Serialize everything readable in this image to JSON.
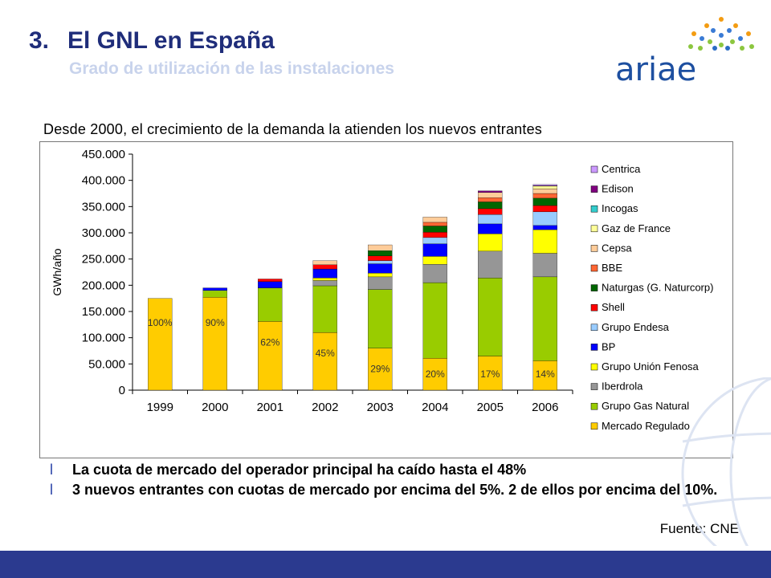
{
  "header": {
    "number": "3.",
    "title": "El GNL en España",
    "subtitle": "Grado de utilización de las instalaciones"
  },
  "logo": {
    "text": "ariae"
  },
  "lead_text": "Desde 2000, el crecimiento de la demanda la atienden los nuevos entrantes",
  "chart_data": {
    "type": "bar",
    "stacked": true,
    "ylabel": "GWh/año",
    "ylim": [
      0,
      450000
    ],
    "yticks": [
      0,
      50000,
      100000,
      150000,
      200000,
      250000,
      300000,
      350000,
      400000,
      450000
    ],
    "ytick_labels": [
      "0",
      "50.000",
      "100.000",
      "150.000",
      "200.000",
      "250.000",
      "300.000",
      "350.000",
      "400.000",
      "450.000"
    ],
    "categories": [
      "1999",
      "2000",
      "2001",
      "2002",
      "2003",
      "2004",
      "2005",
      "2006"
    ],
    "grid": false,
    "legend_position": "right",
    "series": [
      {
        "name": "Mercado Regulado",
        "color": "#ffcc00",
        "values": [
          175000,
          177000,
          131000,
          110000,
          80000,
          61000,
          65000,
          56000
        ]
      },
      {
        "name": "Grupo Gas Natural",
        "color": "#99cc00",
        "values": [
          0,
          13000,
          64000,
          89000,
          112000,
          144000,
          149000,
          160000
        ]
      },
      {
        "name": "Iberdrola",
        "color": "#969696",
        "values": [
          0,
          0,
          0,
          10000,
          24000,
          35000,
          51000,
          45000
        ]
      },
      {
        "name": "Grupo Unión Fenosa",
        "color": "#ffff00",
        "values": [
          0,
          0,
          0,
          5000,
          7000,
          15000,
          33000,
          45000
        ]
      },
      {
        "name": "BP",
        "color": "#0000ff",
        "values": [
          0,
          5000,
          12000,
          17000,
          18000,
          24000,
          19000,
          8000
        ]
      },
      {
        "name": "Grupo Endesa",
        "color": "#99ccff",
        "values": [
          0,
          0,
          0,
          0,
          6000,
          12000,
          18000,
          26000
        ]
      },
      {
        "name": "Shell",
        "color": "#ff0000",
        "values": [
          0,
          0,
          5000,
          8000,
          9000,
          10000,
          11000,
          12000
        ]
      },
      {
        "name": "Naturgas (G. Naturcorp)",
        "color": "#006600",
        "values": [
          0,
          0,
          0,
          0,
          10000,
          12000,
          13000,
          14000
        ]
      },
      {
        "name": "BBE",
        "color": "#ff6633",
        "values": [
          0,
          0,
          0,
          0,
          0,
          7000,
          8000,
          9000
        ]
      },
      {
        "name": "Cepsa",
        "color": "#ffcc99",
        "values": [
          0,
          0,
          0,
          8000,
          11000,
          10000,
          10000,
          9000
        ]
      },
      {
        "name": "Gaz de France",
        "color": "#ffff99",
        "values": [
          0,
          0,
          0,
          0,
          0,
          0,
          0,
          5000
        ]
      },
      {
        "name": "Incogas",
        "color": "#33cccc",
        "values": [
          0,
          0,
          0,
          0,
          0,
          0,
          0,
          0
        ]
      },
      {
        "name": "Edison",
        "color": "#800080",
        "values": [
          0,
          0,
          0,
          0,
          0,
          0,
          3000,
          1000
        ]
      },
      {
        "name": "Centrica",
        "color": "#cc99ff",
        "values": [
          0,
          0,
          0,
          0,
          0,
          0,
          0,
          2000
        ]
      }
    ],
    "bar_labels": [
      "100%",
      "90%",
      "62%",
      "45%",
      "29%",
      "20%",
      "17%",
      "14%"
    ]
  },
  "bullets": [
    "La cuota de mercado del operador principal ha caído hasta el 48%",
    "3 nuevos entrantes con cuotas de mercado por encima del 5%. 2 de ellos por encima del 10%."
  ],
  "bullet_marker": "l",
  "source": "Fuente: CNE",
  "colors": {
    "title": "#1f2d7a",
    "subtitle": "#c8d3ec",
    "footer": "#2b3a8f",
    "logo": "#1d4fa0"
  }
}
